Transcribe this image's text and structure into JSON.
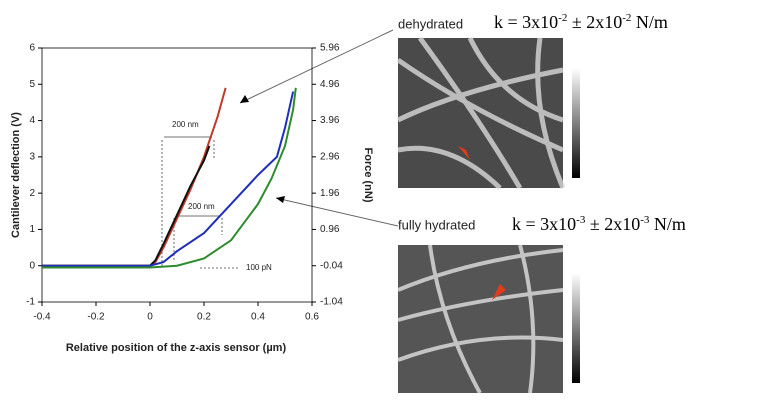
{
  "chart_data": {
    "type": "line",
    "xlabel": "Relative position of the z-axis sensor (µm)",
    "ylabel": "Cantilever deflection (V)",
    "y2label": "Force (nN)",
    "xlim": [
      -0.4,
      0.6
    ],
    "xticks": [
      -0.4,
      -0.2,
      0,
      0.2,
      0.4,
      0.6
    ],
    "ylim": [
      -1,
      6
    ],
    "yticks": [
      -1,
      0,
      1,
      2,
      3,
      4,
      5,
      6
    ],
    "y2lim": [
      -1.04,
      5.96
    ],
    "y2ticks": [
      -1.04,
      -0.04,
      0.96,
      1.96,
      2.96,
      3.96,
      4.96,
      5.96
    ],
    "series": [
      {
        "color": "#c0392b",
        "x": [
          -0.4,
          -0.2,
          0,
          0.02,
          0.05,
          0.1,
          0.15,
          0.2,
          0.25,
          0.28
        ],
        "values": [
          0,
          0,
          0,
          0.1,
          0.5,
          1.3,
          2.1,
          3.0,
          4.1,
          4.9
        ]
      },
      {
        "color": "#111111",
        "x": [
          -0.4,
          -0.2,
          0,
          0.02,
          0.05,
          0.1,
          0.15,
          0.2,
          0.22
        ],
        "values": [
          0,
          0,
          0,
          0.15,
          0.6,
          1.4,
          2.2,
          2.9,
          3.3
        ]
      },
      {
        "color": "#1f2fb8",
        "x": [
          -0.4,
          -0.2,
          0,
          0.05,
          0.1,
          0.2,
          0.3,
          0.4,
          0.47,
          0.5,
          0.53
        ],
        "values": [
          0,
          0,
          0,
          0.1,
          0.4,
          0.9,
          1.7,
          2.5,
          3.0,
          3.8,
          4.8
        ]
      },
      {
        "color": "#2e8b2e",
        "x": [
          -0.4,
          -0.2,
          0,
          0.1,
          0.2,
          0.3,
          0.4,
          0.45,
          0.5,
          0.53,
          0.54
        ],
        "values": [
          -0.05,
          -0.05,
          -0.05,
          0,
          0.2,
          0.7,
          1.7,
          2.4,
          3.3,
          4.3,
          4.9
        ]
      }
    ],
    "notes": [
      "200 nm",
      "200 nm",
      "100 pN"
    ]
  },
  "panels": [
    {
      "label": "dehydrated",
      "k": [
        "k = 3x10",
        "-2",
        " ± 2x10",
        "-2",
        " N/m"
      ]
    },
    {
      "label": "fully hydrated",
      "k": [
        "k = 3x10",
        "-3",
        " ± 2x10",
        "-3",
        " N/m"
      ]
    }
  ]
}
